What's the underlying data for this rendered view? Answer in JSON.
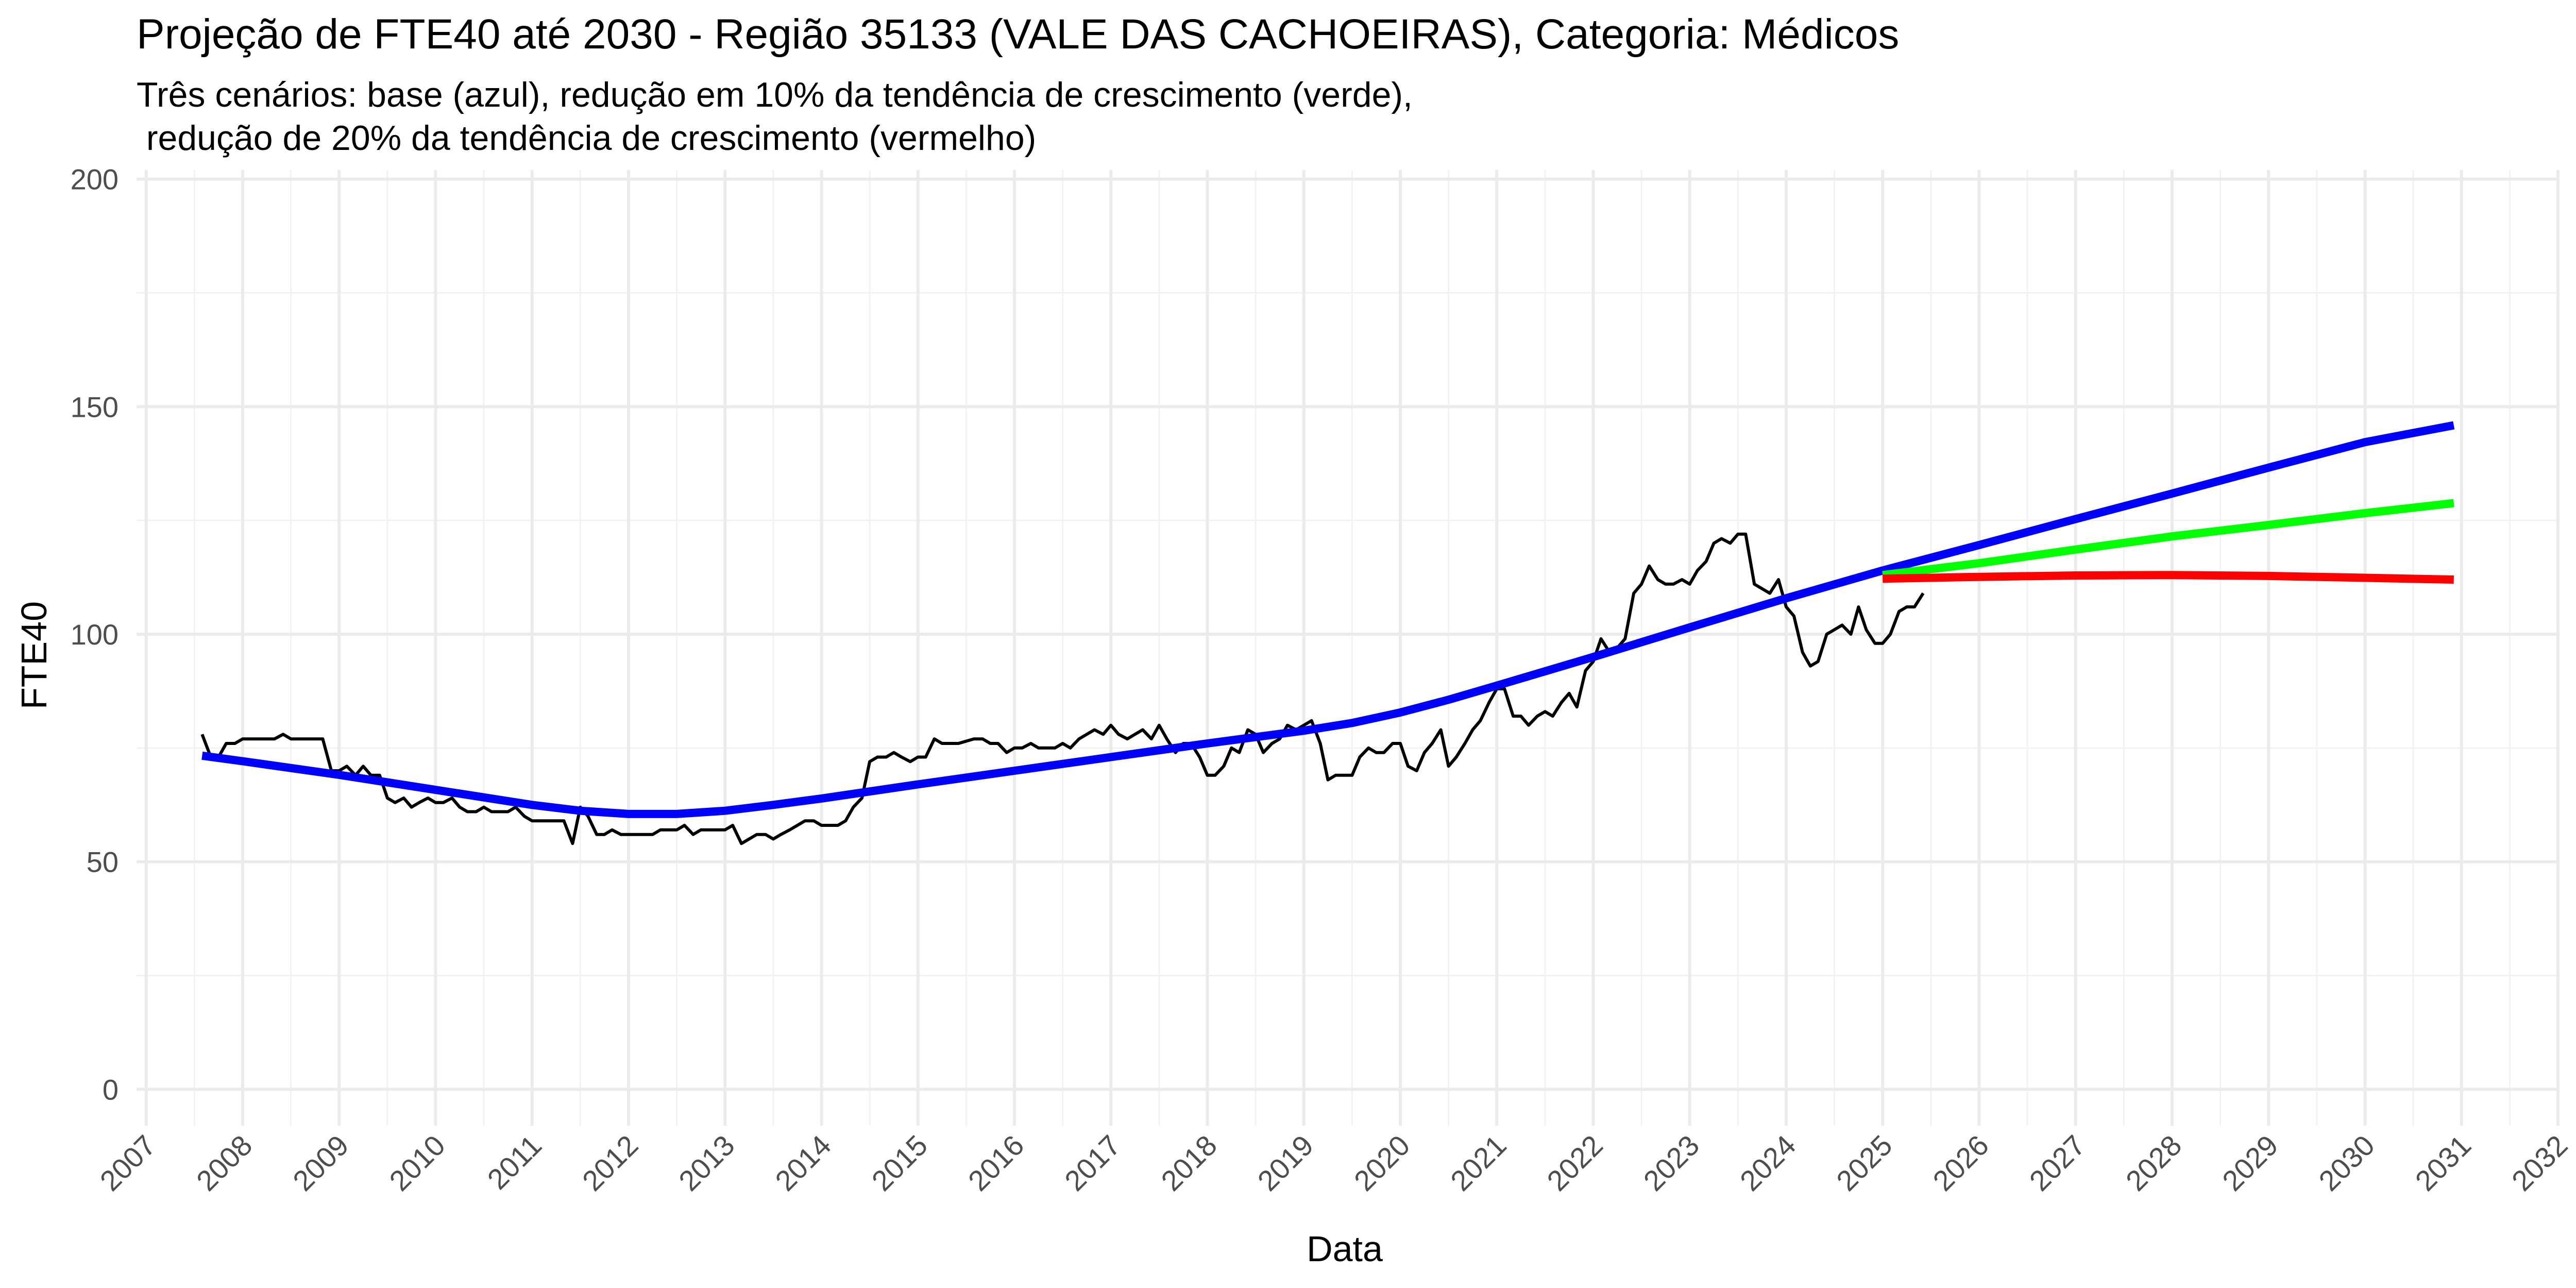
{
  "chart_data": {
    "type": "line",
    "title": "Projeção de FTE40 até 2030 - Região 35133 (VALE DAS CACHOEIRAS), Categoria: Médicos",
    "subtitle": [
      "Três cenários: base (azul), redução em 10% da tendência de crescimento (verde),",
      " redução de 20% da tendência de crescimento (vermelho)"
    ],
    "xlabel": "Data",
    "ylabel": "FTE40",
    "xlim": [
      2006.9,
      2032.0
    ],
    "ylim": [
      -8,
      202
    ],
    "x_ticks": [
      "2007",
      "2008",
      "2009",
      "2010",
      "2011",
      "2012",
      "2013",
      "2014",
      "2015",
      "2016",
      "2017",
      "2018",
      "2019",
      "2020",
      "2021",
      "2022",
      "2023",
      "2024",
      "2025",
      "2026",
      "2027",
      "2028",
      "2029",
      "2030",
      "2031",
      "2032"
    ],
    "y_ticks": [
      0,
      50,
      100,
      150,
      200
    ],
    "grid": true,
    "legend": "none",
    "series": [
      {
        "color": "#000000",
        "values": [
          [
            2007.58,
            78
          ],
          [
            2007.67,
            73
          ],
          [
            2007.75,
            73
          ],
          [
            2007.83,
            76
          ],
          [
            2007.92,
            76
          ],
          [
            2008.0,
            77
          ],
          [
            2008.17,
            77
          ],
          [
            2008.33,
            77
          ],
          [
            2008.42,
            78
          ],
          [
            2008.5,
            77
          ],
          [
            2008.67,
            77
          ],
          [
            2008.83,
            77
          ],
          [
            2008.92,
            70
          ],
          [
            2009.0,
            70
          ],
          [
            2009.08,
            71
          ],
          [
            2009.17,
            69
          ],
          [
            2009.25,
            71
          ],
          [
            2009.33,
            69
          ],
          [
            2009.42,
            69
          ],
          [
            2009.5,
            64
          ],
          [
            2009.58,
            63
          ],
          [
            2009.67,
            64
          ],
          [
            2009.75,
            62
          ],
          [
            2009.83,
            63
          ],
          [
            2009.92,
            64
          ],
          [
            2010.0,
            63
          ],
          [
            2010.08,
            63
          ],
          [
            2010.17,
            64
          ],
          [
            2010.25,
            62
          ],
          [
            2010.33,
            61
          ],
          [
            2010.42,
            61
          ],
          [
            2010.5,
            62
          ],
          [
            2010.58,
            61
          ],
          [
            2010.75,
            61
          ],
          [
            2010.83,
            62
          ],
          [
            2010.92,
            60
          ],
          [
            2011.0,
            59
          ],
          [
            2011.17,
            59
          ],
          [
            2011.33,
            59
          ],
          [
            2011.42,
            54
          ],
          [
            2011.5,
            62
          ],
          [
            2011.58,
            60
          ],
          [
            2011.67,
            56
          ],
          [
            2011.75,
            56
          ],
          [
            2011.83,
            57
          ],
          [
            2011.92,
            56
          ],
          [
            2012.0,
            56
          ],
          [
            2012.25,
            56
          ],
          [
            2012.33,
            57
          ],
          [
            2012.5,
            57
          ],
          [
            2012.58,
            58
          ],
          [
            2012.67,
            56
          ],
          [
            2012.75,
            57
          ],
          [
            2012.92,
            57
          ],
          [
            2013.0,
            57
          ],
          [
            2013.08,
            58
          ],
          [
            2013.17,
            54
          ],
          [
            2013.25,
            55
          ],
          [
            2013.33,
            56
          ],
          [
            2013.42,
            56
          ],
          [
            2013.5,
            55
          ],
          [
            2013.58,
            56
          ],
          [
            2013.67,
            57
          ],
          [
            2013.75,
            58
          ],
          [
            2013.83,
            59
          ],
          [
            2013.92,
            59
          ],
          [
            2014.0,
            58
          ],
          [
            2014.17,
            58
          ],
          [
            2014.25,
            59
          ],
          [
            2014.33,
            62
          ],
          [
            2014.42,
            64
          ],
          [
            2014.5,
            72
          ],
          [
            2014.58,
            73
          ],
          [
            2014.67,
            73
          ],
          [
            2014.75,
            74
          ],
          [
            2014.83,
            73
          ],
          [
            2014.92,
            72
          ],
          [
            2015.0,
            73
          ],
          [
            2015.08,
            73
          ],
          [
            2015.17,
            77
          ],
          [
            2015.25,
            76
          ],
          [
            2015.42,
            76
          ],
          [
            2015.58,
            77
          ],
          [
            2015.67,
            77
          ],
          [
            2015.75,
            76
          ],
          [
            2015.83,
            76
          ],
          [
            2015.92,
            74
          ],
          [
            2016.0,
            75
          ],
          [
            2016.08,
            75
          ],
          [
            2016.17,
            76
          ],
          [
            2016.25,
            75
          ],
          [
            2016.42,
            75
          ],
          [
            2016.5,
            76
          ],
          [
            2016.58,
            75
          ],
          [
            2016.67,
            77
          ],
          [
            2016.75,
            78
          ],
          [
            2016.83,
            79
          ],
          [
            2016.92,
            78
          ],
          [
            2017.0,
            80
          ],
          [
            2017.08,
            78
          ],
          [
            2017.17,
            77
          ],
          [
            2017.25,
            78
          ],
          [
            2017.33,
            79
          ],
          [
            2017.42,
            77
          ],
          [
            2017.5,
            80
          ],
          [
            2017.58,
            77
          ],
          [
            2017.67,
            74
          ],
          [
            2017.75,
            76
          ],
          [
            2017.83,
            76
          ],
          [
            2017.92,
            73
          ],
          [
            2018.0,
            69
          ],
          [
            2018.08,
            69
          ],
          [
            2018.17,
            71
          ],
          [
            2018.25,
            75
          ],
          [
            2018.33,
            74
          ],
          [
            2018.42,
            79
          ],
          [
            2018.5,
            78
          ],
          [
            2018.58,
            74
          ],
          [
            2018.67,
            76
          ],
          [
            2018.75,
            77
          ],
          [
            2018.83,
            80
          ],
          [
            2018.92,
            79
          ],
          [
            2019.0,
            80
          ],
          [
            2019.08,
            81
          ],
          [
            2019.17,
            76
          ],
          [
            2019.25,
            68
          ],
          [
            2019.33,
            69
          ],
          [
            2019.42,
            69
          ],
          [
            2019.5,
            69
          ],
          [
            2019.58,
            73
          ],
          [
            2019.67,
            75
          ],
          [
            2019.75,
            74
          ],
          [
            2019.83,
            74
          ],
          [
            2019.92,
            76
          ],
          [
            2020.0,
            76
          ],
          [
            2020.08,
            71
          ],
          [
            2020.17,
            70
          ],
          [
            2020.25,
            74
          ],
          [
            2020.33,
            76
          ],
          [
            2020.42,
            79
          ],
          [
            2020.5,
            71
          ],
          [
            2020.58,
            73
          ],
          [
            2020.67,
            76
          ],
          [
            2020.75,
            79
          ],
          [
            2020.83,
            81
          ],
          [
            2020.92,
            85
          ],
          [
            2021.0,
            88
          ],
          [
            2021.08,
            88
          ],
          [
            2021.17,
            82
          ],
          [
            2021.25,
            82
          ],
          [
            2021.33,
            80
          ],
          [
            2021.42,
            82
          ],
          [
            2021.5,
            83
          ],
          [
            2021.58,
            82
          ],
          [
            2021.67,
            85
          ],
          [
            2021.75,
            87
          ],
          [
            2021.83,
            84
          ],
          [
            2021.92,
            92
          ],
          [
            2022.0,
            94
          ],
          [
            2022.08,
            99
          ],
          [
            2022.17,
            96
          ],
          [
            2022.25,
            97
          ],
          [
            2022.33,
            99
          ],
          [
            2022.42,
            109
          ],
          [
            2022.5,
            111
          ],
          [
            2022.58,
            115
          ],
          [
            2022.67,
            112
          ],
          [
            2022.75,
            111
          ],
          [
            2022.83,
            111
          ],
          [
            2022.92,
            112
          ],
          [
            2023.0,
            111
          ],
          [
            2023.08,
            114
          ],
          [
            2023.17,
            116
          ],
          [
            2023.25,
            120
          ],
          [
            2023.33,
            121
          ],
          [
            2023.42,
            120
          ],
          [
            2023.5,
            122
          ],
          [
            2023.58,
            122
          ],
          [
            2023.67,
            111
          ],
          [
            2023.75,
            110
          ],
          [
            2023.83,
            109
          ],
          [
            2023.92,
            112
          ],
          [
            2024.0,
            106
          ],
          [
            2024.08,
            104
          ],
          [
            2024.17,
            96
          ],
          [
            2024.25,
            93
          ],
          [
            2024.33,
            94
          ],
          [
            2024.42,
            100
          ],
          [
            2024.5,
            101
          ],
          [
            2024.58,
            102
          ],
          [
            2024.67,
            100
          ],
          [
            2024.75,
            106
          ],
          [
            2024.83,
            101
          ],
          [
            2024.92,
            98
          ],
          [
            2025.0,
            98
          ],
          [
            2025.08,
            100
          ],
          [
            2025.17,
            105
          ],
          [
            2025.25,
            106
          ],
          [
            2025.33,
            106
          ],
          [
            2025.42,
            109
          ]
        ]
      },
      {
        "color": "#0000ff",
        "values": [
          [
            2007.58,
            73.3
          ],
          [
            2008.0,
            72.1
          ],
          [
            2009.0,
            69.1
          ],
          [
            2010.0,
            65.8
          ],
          [
            2011.0,
            62.5
          ],
          [
            2011.5,
            61.2
          ],
          [
            2012.0,
            60.5
          ],
          [
            2012.5,
            60.5
          ],
          [
            2013.0,
            61.2
          ],
          [
            2013.5,
            62.5
          ],
          [
            2014.0,
            63.9
          ],
          [
            2015.0,
            67.0
          ],
          [
            2016.0,
            70.0
          ],
          [
            2017.0,
            73.0
          ],
          [
            2018.0,
            76.0
          ],
          [
            2019.0,
            78.8
          ],
          [
            2019.5,
            80.5
          ],
          [
            2020.0,
            82.8
          ],
          [
            2020.5,
            85.6
          ],
          [
            2021.0,
            88.7
          ],
          [
            2022.0,
            95.0
          ],
          [
            2023.0,
            101.5
          ],
          [
            2024.0,
            107.9
          ],
          [
            2025.0,
            114.0
          ],
          [
            2026.0,
            119.6
          ],
          [
            2027.0,
            125.3
          ],
          [
            2028.0,
            130.9
          ],
          [
            2029.0,
            136.6
          ],
          [
            2030.0,
            142.2
          ],
          [
            2030.92,
            145.9
          ]
        ]
      },
      {
        "color": "#00ff00",
        "values": [
          [
            2025.0,
            113.0
          ],
          [
            2026.0,
            115.6
          ],
          [
            2027.0,
            118.6
          ],
          [
            2028.0,
            121.5
          ],
          [
            2029.0,
            124.0
          ],
          [
            2030.0,
            126.6
          ],
          [
            2030.92,
            128.8
          ]
        ]
      },
      {
        "color": "#ff0000",
        "values": [
          [
            2025.0,
            112.2
          ],
          [
            2025.5,
            112.4
          ],
          [
            2026.0,
            112.6
          ],
          [
            2027.0,
            112.9
          ],
          [
            2028.0,
            113.0
          ],
          [
            2029.0,
            112.8
          ],
          [
            2030.0,
            112.4
          ],
          [
            2030.92,
            112.0
          ]
        ]
      }
    ]
  }
}
